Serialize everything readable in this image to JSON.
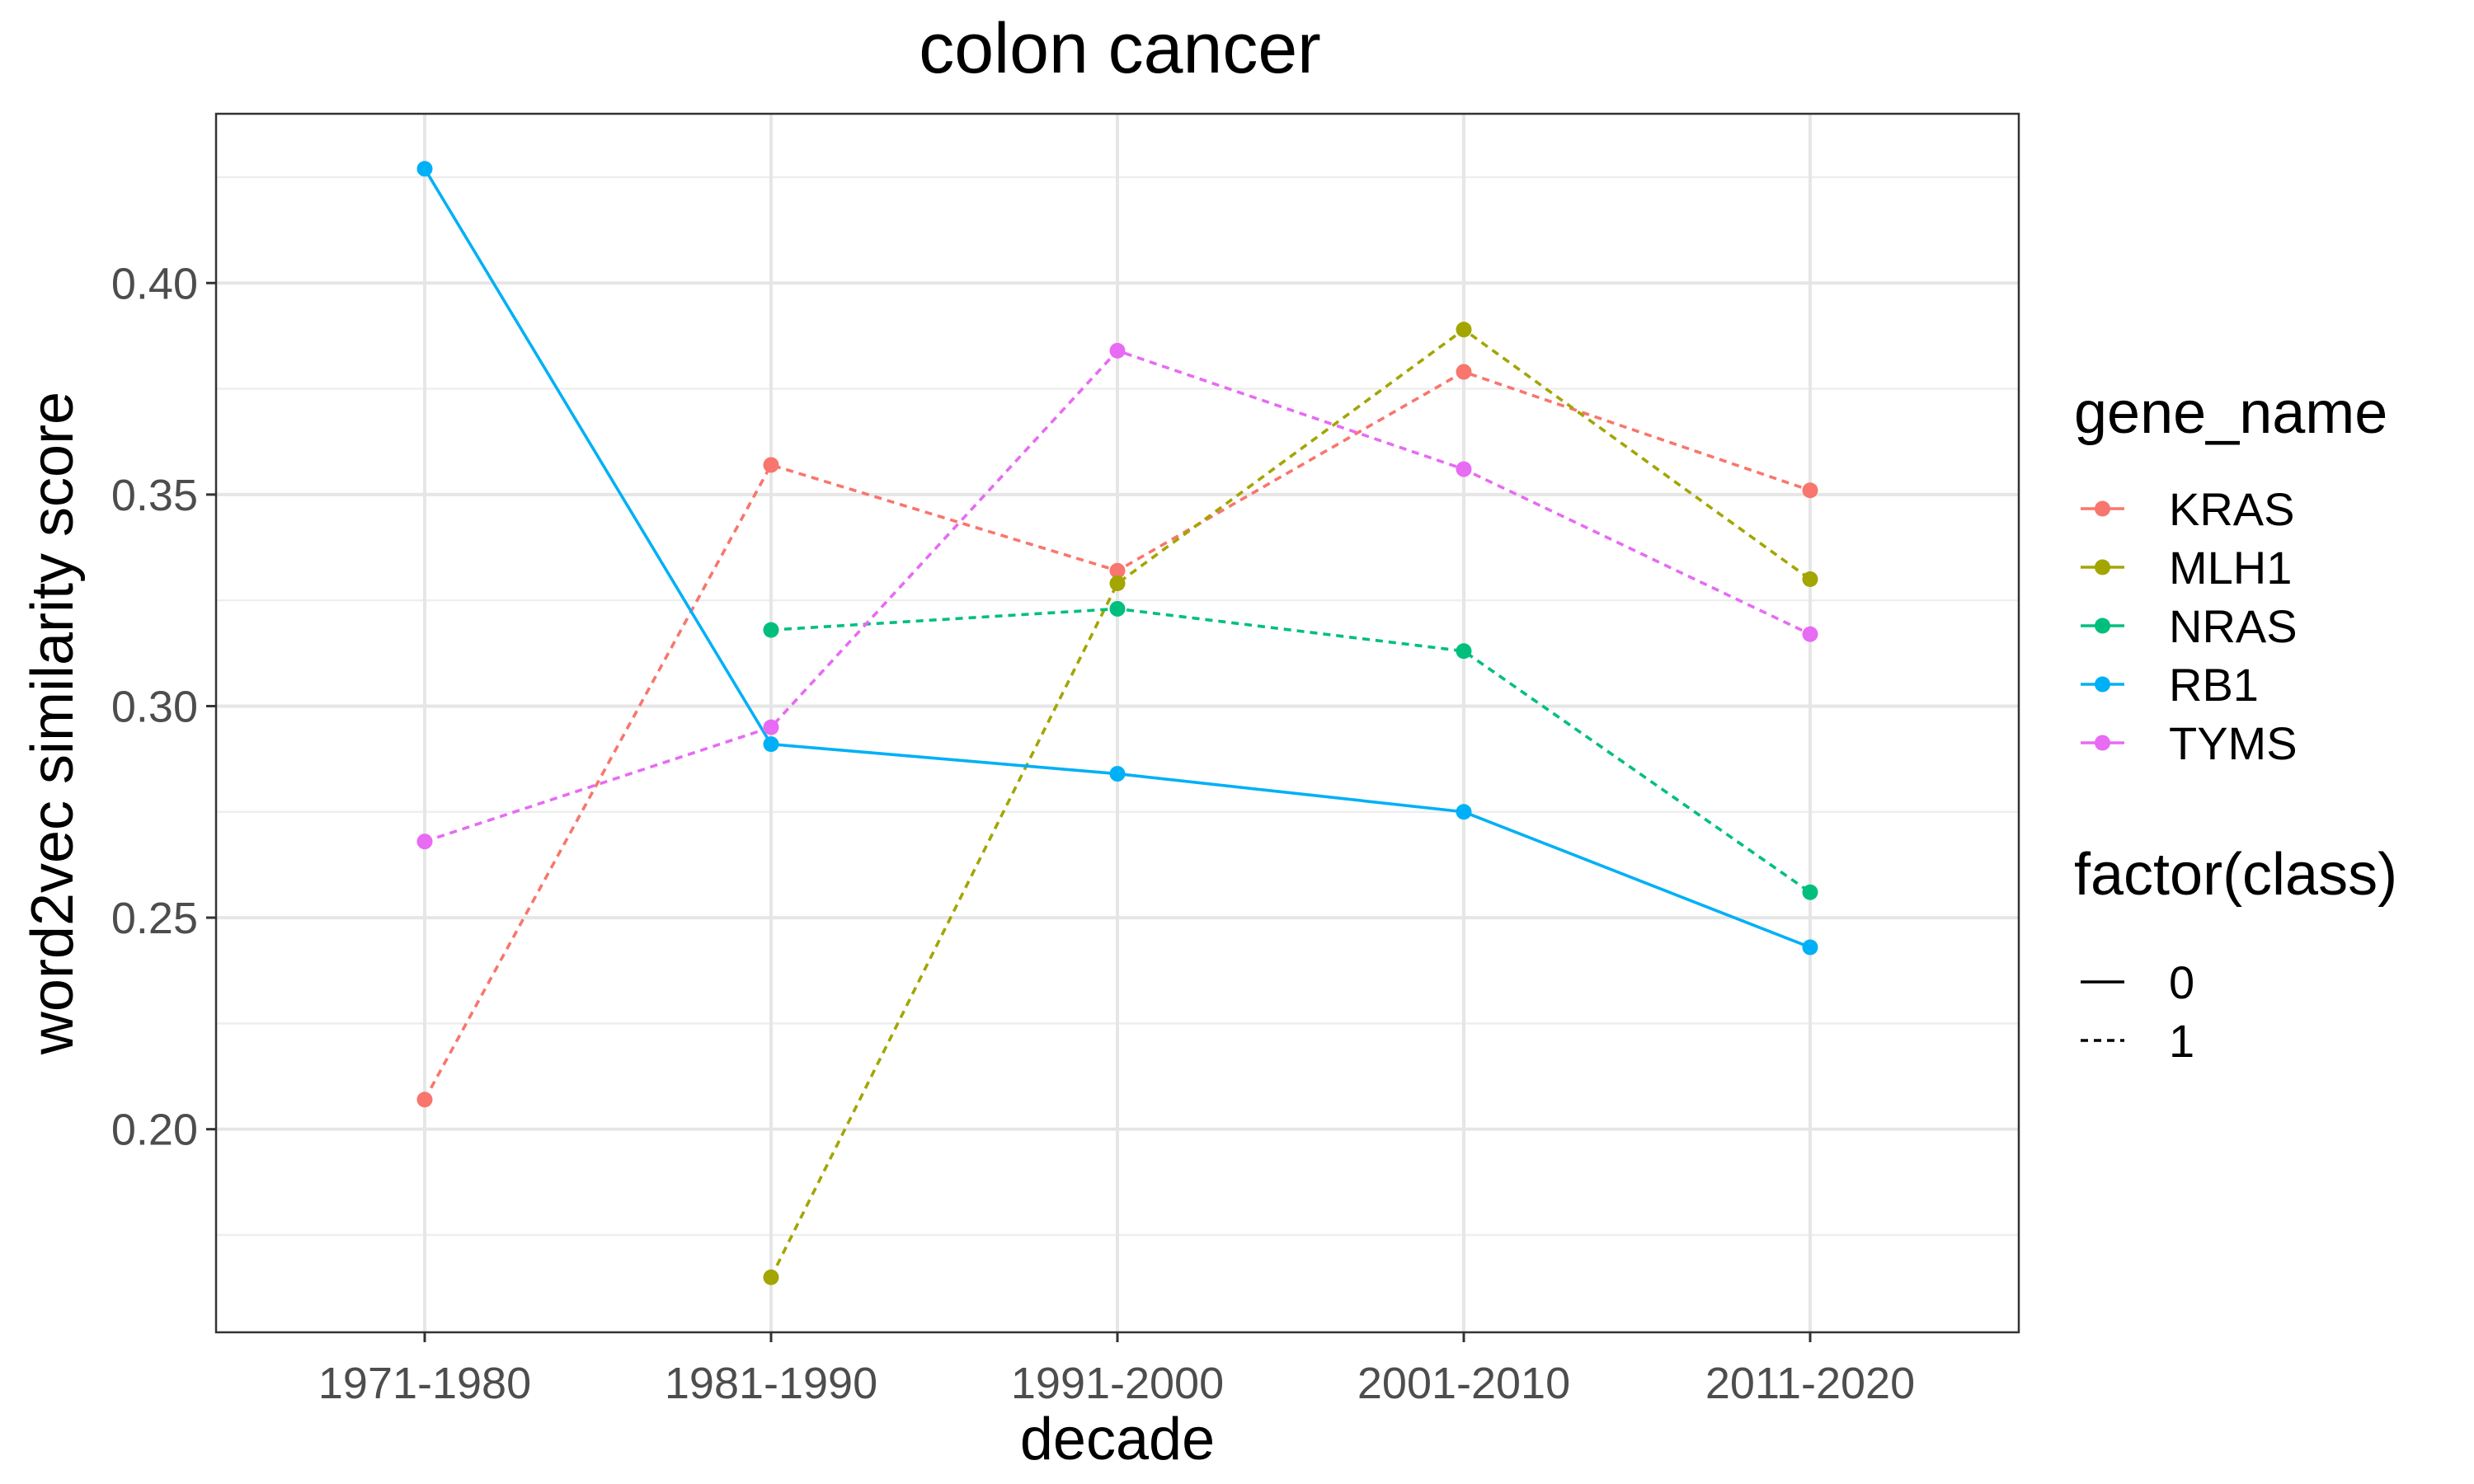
{
  "chart_data": {
    "type": "line",
    "title": "colon cancer",
    "xlabel": "decade",
    "ylabel": "word2vec similarity score",
    "categories": [
      "1971-1980",
      "1981-1990",
      "1991-2000",
      "2001-2010",
      "2011-2020"
    ],
    "ylim": [
      0.152,
      0.44
    ],
    "y_ticks": [
      "0.20",
      "0.25",
      "0.30",
      "0.35",
      "0.40"
    ],
    "grid": true,
    "legend_position": "right",
    "series": [
      {
        "name": "KRAS",
        "color": "#F8766D",
        "class": "1",
        "values": [
          0.207,
          0.357,
          0.332,
          0.379,
          0.351
        ]
      },
      {
        "name": "MLH1",
        "color": "#A3A500",
        "class": "1",
        "values": [
          null,
          0.165,
          0.329,
          0.389,
          0.33
        ]
      },
      {
        "name": "NRAS",
        "color": "#00BF7D",
        "class": "1",
        "values": [
          null,
          0.318,
          0.323,
          0.313,
          0.256
        ]
      },
      {
        "name": "RB1",
        "color": "#00B0F6",
        "class": "0",
        "values": [
          0.427,
          0.291,
          0.284,
          0.275,
          0.243
        ]
      },
      {
        "name": "TYMS",
        "color": "#E76BF3",
        "class": "1",
        "values": [
          0.268,
          0.295,
          0.384,
          0.356,
          0.317
        ]
      }
    ],
    "legend": {
      "color_title": "gene_name",
      "color_items": [
        "KRAS",
        "MLH1",
        "NRAS",
        "RB1",
        "TYMS"
      ],
      "linetype_title": "factor(class)",
      "linetype_items": [
        "0",
        "1"
      ]
    }
  }
}
